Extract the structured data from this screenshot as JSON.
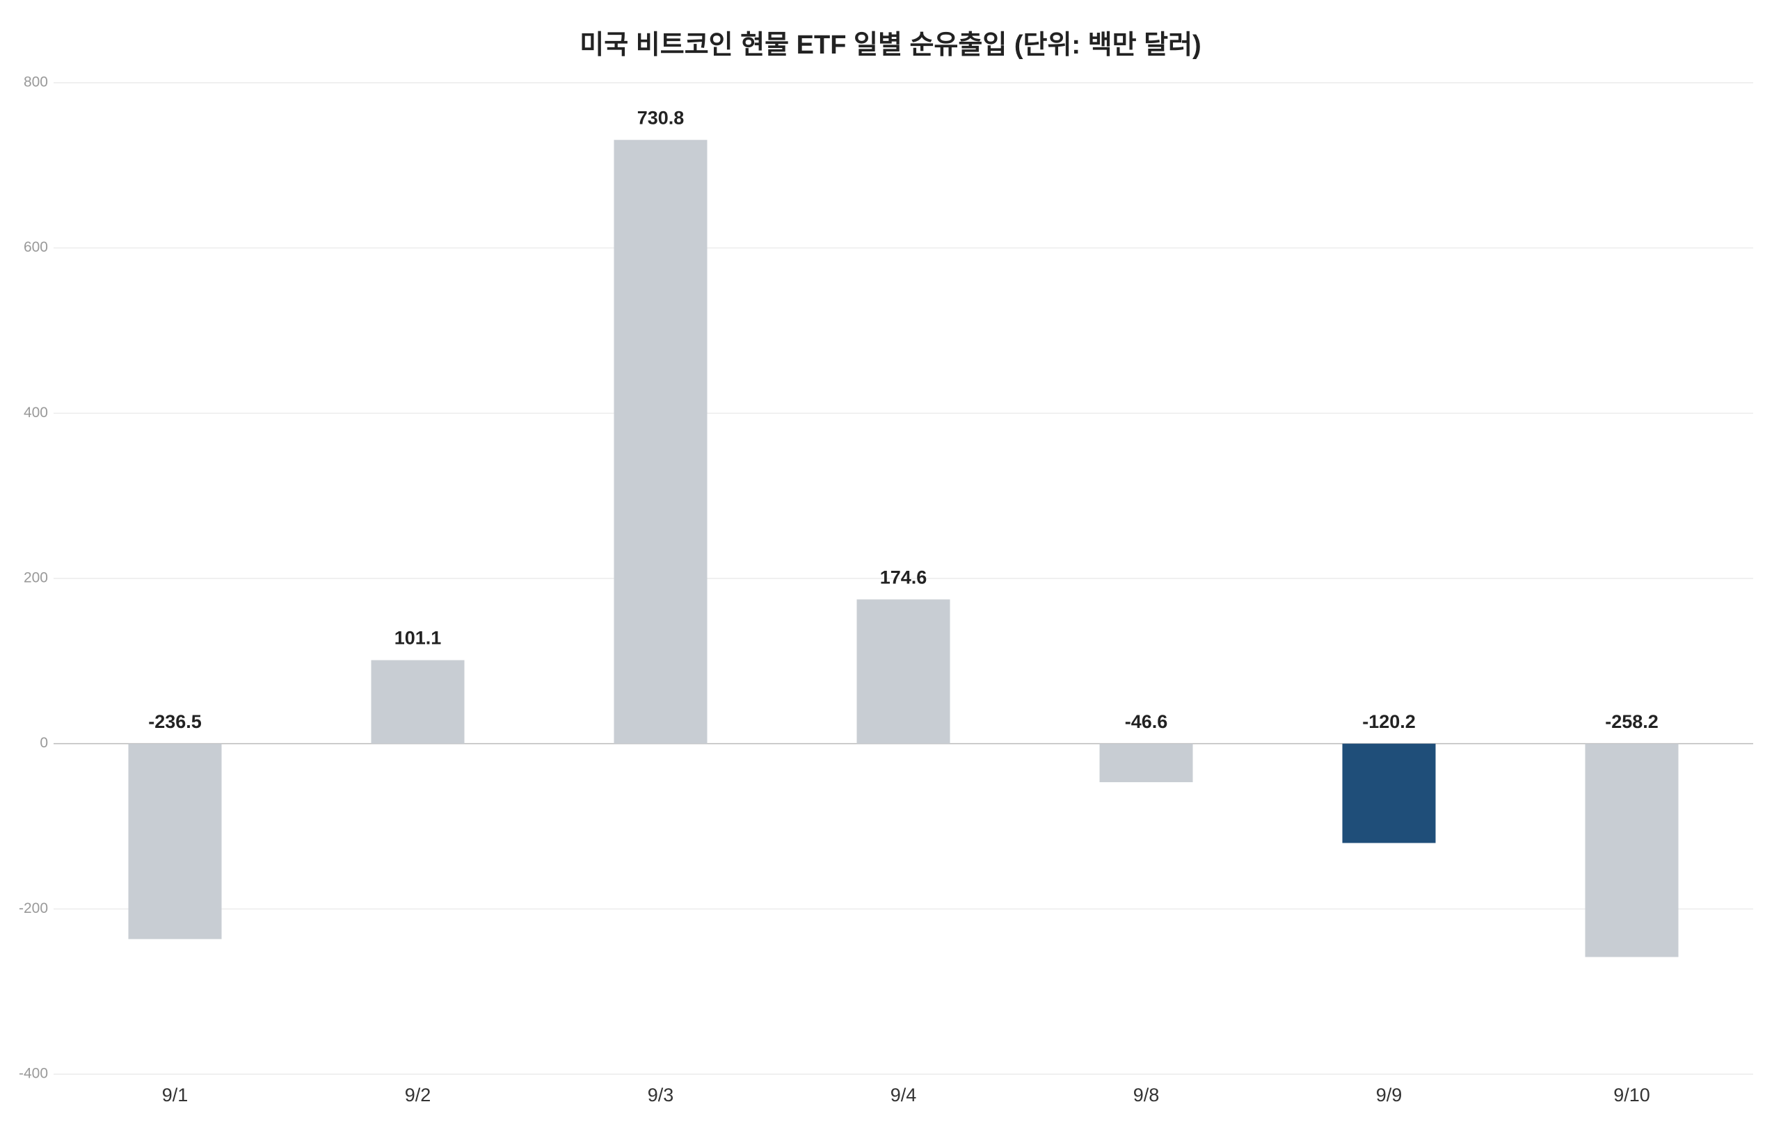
{
  "chart_data": {
    "type": "bar",
    "title": "미국 비트코인 현물 ETF 일별 순유출입 (단위: 백만 달러)",
    "categories": [
      "9/1",
      "9/2",
      "9/3",
      "9/4",
      "9/8",
      "9/9",
      "9/10"
    ],
    "values": [
      -236.5,
      101.1,
      730.8,
      174.6,
      -46.6,
      -120.2,
      -258.2
    ],
    "colors": [
      "#c8cdd3",
      "#c8cdd3",
      "#c8cdd3",
      "#c8cdd3",
      "#c8cdd3",
      "#1f4e79",
      "#c8cdd3"
    ],
    "ylim": [
      -400,
      800
    ],
    "yticks": [
      -400,
      -200,
      0,
      200,
      400,
      600,
      800
    ],
    "grid": true
  }
}
